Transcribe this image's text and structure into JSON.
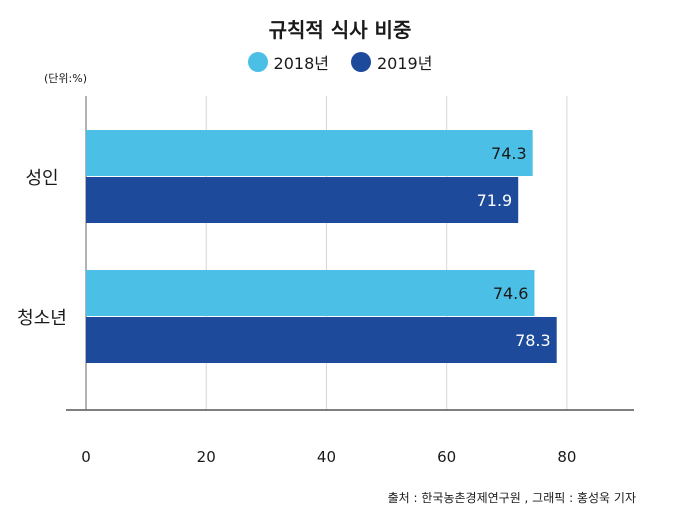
{
  "chart_data": {
    "type": "bar",
    "orientation": "horizontal",
    "title": "규칙적 식사 비중",
    "unit_label": "(단위:%)",
    "categories": [
      "성인",
      "청소년"
    ],
    "series": [
      {
        "name": "2018년",
        "values": [
          74.3,
          74.6
        ],
        "value_labels": [
          "74.3",
          "74.6"
        ],
        "color": "#4bbfe6"
      },
      {
        "name": "2019년",
        "values": [
          71.9,
          78.3
        ],
        "value_labels": [
          "71.9",
          "78.3"
        ],
        "color": "#1e4a9c"
      }
    ],
    "xticks": [
      "0",
      "20",
      "40",
      "60",
      "80"
    ],
    "xlim": [
      0,
      88
    ],
    "grid": true,
    "legend_position": "top-center",
    "source": "출처 : 한국농촌경제연구원 ,  그래픽 :  홍성욱 기자"
  }
}
